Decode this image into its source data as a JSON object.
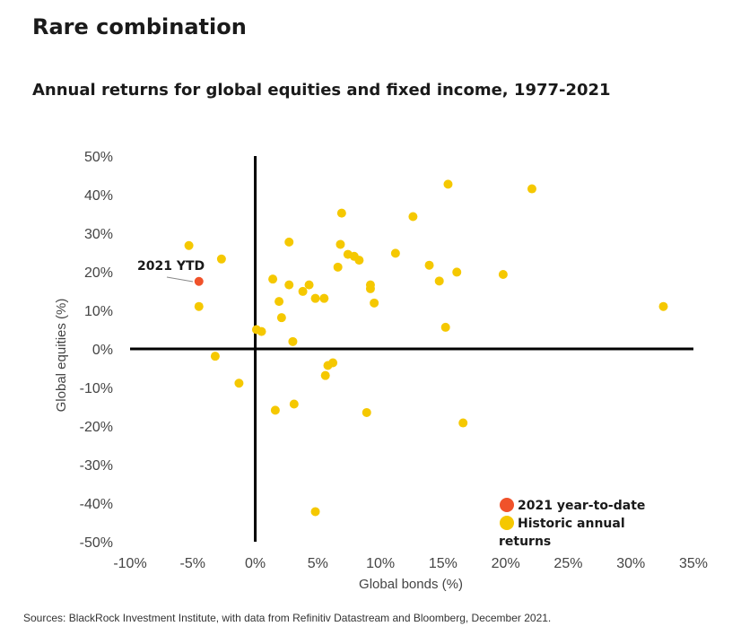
{
  "title": "Rare combination",
  "subtitle": "Annual returns for global equities and fixed income, 1977-2021",
  "source": "Sources: BlackRock Investment Institute, with data from Refinitiv Datastream and Bloomberg, December 2021.",
  "colors": {
    "historic": "#F5C800",
    "ytd": "#F0522A",
    "axis": "#000000",
    "text": "#333333"
  },
  "chart_data": {
    "type": "scatter",
    "xlabel": "Global bonds (%)",
    "ylabel": "Global equities (%)",
    "xlim": [
      -10,
      35
    ],
    "ylim": [
      -50,
      50
    ],
    "x_ticks": [
      -10,
      -5,
      0,
      5,
      10,
      15,
      20,
      25,
      30,
      35
    ],
    "y_ticks": [
      50,
      40,
      30,
      20,
      10,
      0,
      -10,
      -20,
      -30,
      -40,
      -50
    ],
    "x_tick_labels": [
      "-10%",
      "-5%",
      "0%",
      "5%",
      "10%",
      "15%",
      "20%",
      "25%",
      "30%",
      "35%"
    ],
    "y_tick_labels": [
      "50%",
      "40%",
      "30%",
      "20%",
      "10%",
      "0%",
      "-10%",
      "-20%",
      "-30%",
      "-40%",
      "-50%"
    ],
    "annotation": "2021 YTD",
    "legend": {
      "position": "bottom-right",
      "items": [
        "2021 year-to-date",
        "Historic annual returns"
      ]
    },
    "series": [
      {
        "name": "2021 year-to-date",
        "points": [
          [
            -4.5,
            17.5
          ]
        ]
      },
      {
        "name": "Historic annual returns",
        "points": [
          [
            -5.3,
            26.8
          ],
          [
            -2.7,
            23.3
          ],
          [
            -4.5,
            11.0
          ],
          [
            -3.2,
            -1.9
          ],
          [
            -1.3,
            -8.9
          ],
          [
            0.1,
            5.0
          ],
          [
            0.5,
            4.5
          ],
          [
            1.4,
            18.1
          ],
          [
            1.6,
            -15.9
          ],
          [
            1.9,
            12.3
          ],
          [
            2.1,
            8.1
          ],
          [
            2.7,
            27.7
          ],
          [
            2.7,
            16.6
          ],
          [
            3.0,
            1.9
          ],
          [
            3.1,
            -14.3
          ],
          [
            3.8,
            14.9
          ],
          [
            4.3,
            16.6
          ],
          [
            4.8,
            13.1
          ],
          [
            5.5,
            13.1
          ],
          [
            5.6,
            -6.9
          ],
          [
            5.8,
            -4.3
          ],
          [
            6.2,
            -3.6
          ],
          [
            6.6,
            21.2
          ],
          [
            6.8,
            27.1
          ],
          [
            6.9,
            35.2
          ],
          [
            7.4,
            24.5
          ],
          [
            7.9,
            24.0
          ],
          [
            8.3,
            23.0
          ],
          [
            8.9,
            -16.5
          ],
          [
            9.2,
            16.6
          ],
          [
            9.2,
            15.6
          ],
          [
            9.5,
            11.9
          ],
          [
            11.2,
            24.8
          ],
          [
            12.6,
            34.3
          ],
          [
            13.9,
            21.7
          ],
          [
            14.7,
            17.6
          ],
          [
            15.2,
            5.6
          ],
          [
            15.4,
            42.7
          ],
          [
            16.1,
            19.9
          ],
          [
            16.6,
            -19.2
          ],
          [
            19.8,
            19.3
          ],
          [
            22.1,
            41.5
          ],
          [
            32.6,
            11.0
          ],
          [
            4.8,
            -42.2
          ]
        ]
      }
    ]
  }
}
